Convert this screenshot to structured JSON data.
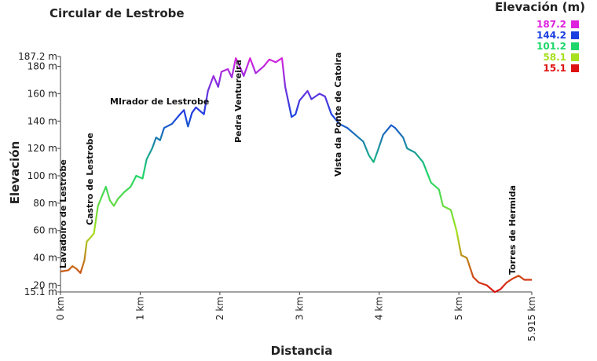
{
  "chart_data": {
    "type": "line",
    "title": "Circular de Lestrobe",
    "x_label": "Distancia",
    "y_label": "Elevación",
    "xlim": [
      0,
      5.915
    ],
    "ylim": [
      15.1,
      187.2
    ],
    "xticks": [
      {
        "value": 0,
        "label": "0 km"
      },
      {
        "value": 1,
        "label": "1 km"
      },
      {
        "value": 2,
        "label": "2 km"
      },
      {
        "value": 3,
        "label": "3 km"
      },
      {
        "value": 4,
        "label": "4 km"
      },
      {
        "value": 5,
        "label": "5 km"
      },
      {
        "value": 5.915,
        "label": "5.915 km"
      }
    ],
    "yticks": [
      {
        "value": 15.1,
        "label": "15.1 m"
      },
      {
        "value": 20,
        "label": "20 m"
      },
      {
        "value": 40,
        "label": "40 m"
      },
      {
        "value": 60,
        "label": "60 m"
      },
      {
        "value": 80,
        "label": "80 m"
      },
      {
        "value": 100,
        "label": "100 m"
      },
      {
        "value": 120,
        "label": "120 m"
      },
      {
        "value": 140,
        "label": "140 m"
      },
      {
        "value": 160,
        "label": "160 m"
      },
      {
        "value": 180,
        "label": "180 m"
      },
      {
        "value": 187.2,
        "label": "187.2 m"
      }
    ],
    "x": [
      0,
      0.1,
      0.15,
      0.2,
      0.25,
      0.3,
      0.33,
      0.38,
      0.42,
      0.47,
      0.52,
      0.57,
      0.62,
      0.67,
      0.72,
      0.8,
      0.88,
      0.95,
      1.03,
      1.08,
      1.15,
      1.2,
      1.25,
      1.3,
      1.4,
      1.5,
      1.55,
      1.6,
      1.65,
      1.7,
      1.8,
      1.85,
      1.92,
      1.98,
      2.02,
      2.1,
      2.15,
      2.2,
      2.25,
      2.3,
      2.38,
      2.45,
      2.55,
      2.62,
      2.7,
      2.78,
      2.82,
      2.9,
      2.95,
      3.0,
      3.1,
      3.15,
      3.25,
      3.32,
      3.4,
      3.5,
      3.6,
      3.7,
      3.8,
      3.87,
      3.93,
      3.98,
      4.05,
      4.15,
      4.2,
      4.3,
      4.35,
      4.45,
      4.55,
      4.65,
      4.75,
      4.8,
      4.9,
      4.97,
      5.03,
      5.1,
      5.18,
      5.25,
      5.35,
      5.45,
      5.52,
      5.6,
      5.68,
      5.75,
      5.82,
      5.9,
      5.915
    ],
    "series": [
      {
        "name": "Elevación",
        "values": [
          30,
          31,
          34,
          32,
          29,
          38,
          52,
          55,
          58,
          78,
          85,
          92,
          82,
          78,
          83,
          88,
          92,
          100,
          98,
          112,
          120,
          128,
          126,
          135,
          138,
          145,
          148,
          136,
          146,
          150,
          145,
          162,
          173,
          165,
          176,
          178,
          172,
          186,
          180,
          173,
          186,
          175,
          180,
          185,
          183,
          186,
          165,
          143,
          145,
          155,
          162,
          156,
          160,
          158,
          145,
          138,
          135,
          130,
          125,
          115,
          110,
          118,
          130,
          137,
          135,
          128,
          120,
          117,
          110,
          95,
          90,
          78,
          75,
          60,
          42,
          40,
          26,
          22,
          20,
          15,
          17,
          22,
          25,
          27,
          24,
          24,
          24
        ]
      }
    ],
    "legend": {
      "title": "Elevación (m)",
      "items": [
        {
          "value": 187.2,
          "color": "#dd22dd"
        },
        {
          "value": 144.2,
          "color": "#1a3fe0"
        },
        {
          "value": 101.2,
          "color": "#1ed66a"
        },
        {
          "value": 58.1,
          "color": "#a6e01e"
        },
        {
          "value": 15.1,
          "color": "#dd1111"
        }
      ]
    },
    "annotations": [
      "Lavadoiro de Lestrobe",
      "Castro de Lestrobe",
      "MIrador de Lestrobe",
      "Pedra Ventureira",
      "Vista da Ponte de Catoira",
      "Torres de Hermida"
    ]
  }
}
